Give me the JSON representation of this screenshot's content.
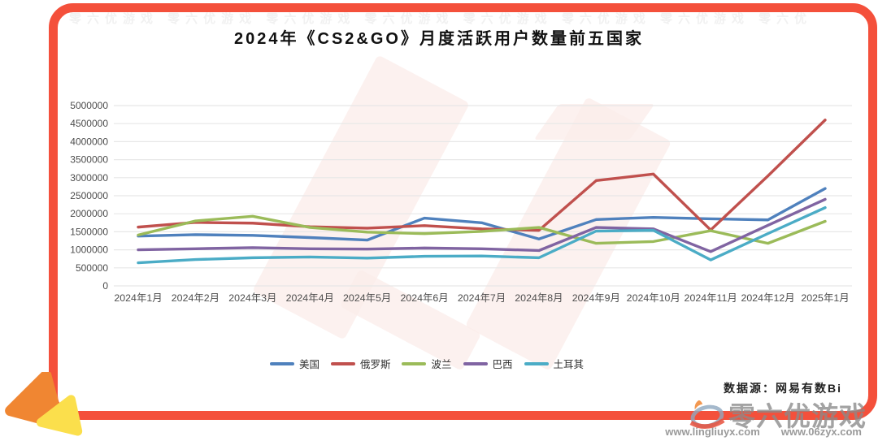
{
  "card": {
    "title": "2024年《CS2&GO》月度活跃用户数量前五国家",
    "source": "数据源：网易有数Bi",
    "border_color": "#F4503B"
  },
  "chart_data": {
    "type": "line",
    "title": "2024年《CS2&GO》月度活跃用户数量前五国家",
    "xlabel": "",
    "ylabel": "",
    "ylim": [
      0,
      5000000
    ],
    "ytick_step": 500000,
    "ytick_labels": [
      "0",
      "500000",
      "1000000",
      "1500000",
      "2000000",
      "2500000",
      "3000000",
      "3500000",
      "4000000",
      "4500000",
      "5000000"
    ],
    "grid": true,
    "legend_position": "bottom",
    "categories": [
      "2024年1月",
      "2024年2月",
      "2024年3月",
      "2024年4月",
      "2024年5月",
      "2024年6月",
      "2024年7月",
      "2024年8月",
      "2024年9月",
      "2024年10月",
      "2024年11月",
      "2024年12月",
      "2025年1月"
    ],
    "series": [
      {
        "name": "美国",
        "color": "#4F81BD",
        "values": [
          1380000,
          1420000,
          1400000,
          1340000,
          1270000,
          1880000,
          1750000,
          1300000,
          1840000,
          1900000,
          1860000,
          1830000,
          2700000
        ]
      },
      {
        "name": "俄罗斯",
        "color": "#C0504D",
        "values": [
          1630000,
          1760000,
          1740000,
          1640000,
          1600000,
          1670000,
          1580000,
          1540000,
          2920000,
          3100000,
          1550000,
          3050000,
          4600000
        ]
      },
      {
        "name": "波兰",
        "color": "#9BBB59",
        "values": [
          1410000,
          1800000,
          1930000,
          1620000,
          1490000,
          1450000,
          1510000,
          1620000,
          1180000,
          1230000,
          1530000,
          1180000,
          1790000
        ]
      },
      {
        "name": "巴西",
        "color": "#8064A2",
        "values": [
          1000000,
          1030000,
          1060000,
          1030000,
          1020000,
          1050000,
          1030000,
          980000,
          1620000,
          1580000,
          950000,
          1680000,
          2400000
        ]
      },
      {
        "name": "土耳其",
        "color": "#4BACC6",
        "values": [
          640000,
          730000,
          780000,
          800000,
          770000,
          820000,
          830000,
          780000,
          1520000,
          1540000,
          720000,
          1450000,
          2170000
        ]
      }
    ]
  },
  "watermark": {
    "brand": "零六优游戏",
    "url_left": "www.lingliuyx.com",
    "url_right": "www.06zyx.com",
    "top_strip": "零六优游戏 零六优游戏 零六优游戏 零六优游戏 零六优游戏 零六优游戏 零六优游戏 零六优游戏 零六优游戏 零六优游戏 零六优游戏 零六优游戏 零六优游戏 零六优游戏"
  }
}
